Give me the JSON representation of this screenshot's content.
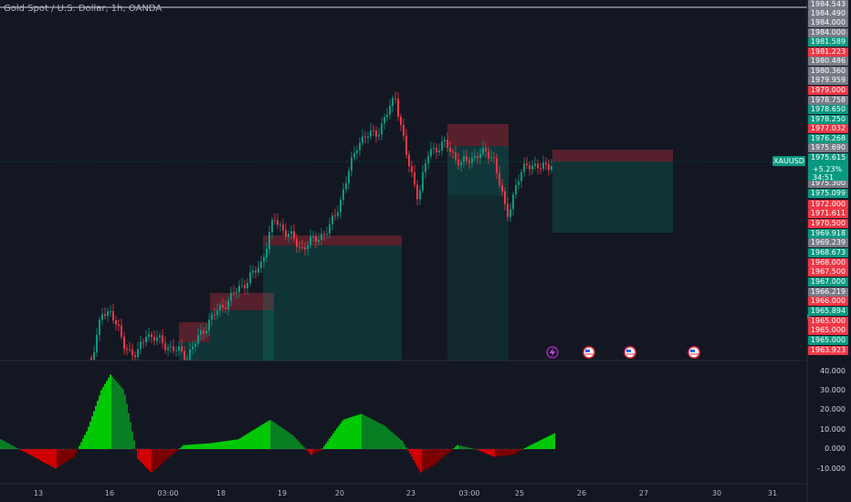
{
  "title": "Gold Spot / U.S. Dollar, 1h, OANDA",
  "symbol_badge": "XAUUSD",
  "current": {
    "price": "1975.615",
    "change": "+5.23%",
    "countdown": "34:51"
  },
  "price_labels": [
    {
      "text": "1984.543",
      "color": "gray"
    },
    {
      "text": "1984.490",
      "color": "gray"
    },
    {
      "text": "1984.000",
      "color": "gray"
    },
    {
      "text": "1984.000",
      "color": "gray"
    },
    {
      "text": "1981.589",
      "color": "green"
    },
    {
      "text": "1981.223",
      "color": "red"
    },
    {
      "text": "1980.486",
      "color": "gray"
    },
    {
      "text": "1980.360",
      "color": "gray"
    },
    {
      "text": "1979.959",
      "color": "gray"
    },
    {
      "text": "1979.000",
      "color": "red"
    },
    {
      "text": "1978.758",
      "color": "gray"
    },
    {
      "text": "1978.650",
      "color": "green"
    },
    {
      "text": "1978.250",
      "color": "green"
    },
    {
      "text": "1977.032",
      "color": "red"
    },
    {
      "text": "1976.268",
      "color": "green"
    },
    {
      "text": "1975.690",
      "color": "gray"
    },
    {
      "text": "1975.300",
      "color": "gray"
    },
    {
      "text": "1975.099",
      "color": "green"
    },
    {
      "text": "1972.000",
      "color": "red"
    },
    {
      "text": "1971.611",
      "color": "red"
    },
    {
      "text": "1970.500",
      "color": "red"
    },
    {
      "text": "1969.918",
      "color": "green"
    },
    {
      "text": "1969.239",
      "color": "gray"
    },
    {
      "text": "1968.673",
      "color": "green"
    },
    {
      "text": "1968.000",
      "color": "red"
    },
    {
      "text": "1967.500",
      "color": "red"
    },
    {
      "text": "1967.000",
      "color": "green"
    },
    {
      "text": "1966.219",
      "color": "gray"
    },
    {
      "text": "1966.000",
      "color": "red"
    },
    {
      "text": "1965.894",
      "color": "green"
    },
    {
      "text": "1965.000",
      "color": "red"
    },
    {
      "text": "1965.000",
      "color": "red"
    },
    {
      "text": "1965.000",
      "color": "green"
    },
    {
      "text": "1963.923",
      "color": "red"
    }
  ],
  "oscillator_labels": [
    "40.000",
    "30.000",
    "20.000",
    "10.000",
    "0.000",
    "-10.000"
  ],
  "time_labels": [
    "13",
    "16",
    "03:00",
    "18",
    "19",
    "20",
    "23",
    "03:00",
    "25",
    "26",
    "27",
    "30",
    "31"
  ],
  "colors": {
    "background": "#131722",
    "up": "#089981",
    "down": "#f23645",
    "gray_label": "#787b86",
    "osc_up": "#00c805",
    "osc_down": "#d00000"
  },
  "event_icons": [
    "lightning-icon",
    "us-flag-icon",
    "us-flag-icon",
    "us-flag-icon"
  ]
}
